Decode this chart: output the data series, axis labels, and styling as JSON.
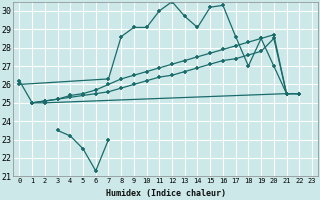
{
  "xlabel": "Humidex (Indice chaleur)",
  "bg_color": "#cce8e8",
  "grid_color": "#ffffff",
  "line_color": "#1a6b6b",
  "xlim": [
    -0.5,
    23.5
  ],
  "ylim": [
    21,
    30.5
  ],
  "xticks": [
    0,
    1,
    2,
    3,
    4,
    5,
    6,
    7,
    8,
    9,
    10,
    11,
    12,
    13,
    14,
    15,
    16,
    17,
    18,
    19,
    20,
    21,
    22,
    23
  ],
  "yticks": [
    21,
    22,
    23,
    24,
    25,
    26,
    27,
    28,
    29,
    30
  ],
  "series": [
    {
      "x": [
        0,
        1,
        2,
        21,
        22
      ],
      "y": [
        26.2,
        25.0,
        25.0,
        25.5,
        25.5
      ],
      "ls": "-",
      "marker": "+"
    },
    {
      "x": [
        3,
        4,
        5,
        6,
        7
      ],
      "y": [
        23.5,
        23.2,
        22.5,
        21.3,
        23.0
      ],
      "ls": "-",
      "marker": "+"
    },
    {
      "x": [
        0,
        7,
        8,
        9,
        10,
        11,
        12,
        13,
        14,
        15,
        16,
        17,
        18,
        19,
        20,
        21,
        22
      ],
      "y": [
        26.0,
        26.3,
        28.6,
        29.1,
        29.1,
        30.0,
        30.5,
        29.7,
        29.1,
        30.2,
        30.3,
        28.6,
        27.0,
        28.5,
        27.0,
        25.5,
        25.5
      ],
      "ls": "-",
      "marker": "+"
    },
    {
      "x": [
        1,
        2,
        3,
        4,
        5,
        6,
        7,
        8,
        9,
        10,
        11,
        12,
        13,
        14,
        15,
        16,
        17,
        18,
        19,
        20,
        21,
        22
      ],
      "y": [
        25.0,
        25.1,
        25.2,
        25.4,
        25.5,
        25.7,
        26.0,
        26.3,
        26.5,
        26.7,
        26.9,
        27.1,
        27.3,
        27.5,
        27.7,
        27.9,
        28.1,
        28.3,
        28.5,
        28.7,
        25.5,
        25.5
      ],
      "ls": "-",
      "marker": "+"
    },
    {
      "x": [
        1,
        2,
        3,
        4,
        5,
        6,
        7,
        8,
        9,
        10,
        11,
        12,
        13,
        14,
        15,
        16,
        17,
        18,
        19,
        20,
        21,
        22
      ],
      "y": [
        25.0,
        25.1,
        25.2,
        25.3,
        25.4,
        25.5,
        25.6,
        25.8,
        26.0,
        26.2,
        26.4,
        26.5,
        26.7,
        26.9,
        27.1,
        27.3,
        27.4,
        27.6,
        27.8,
        28.5,
        25.5,
        25.5
      ],
      "ls": "-",
      "marker": "+"
    }
  ]
}
